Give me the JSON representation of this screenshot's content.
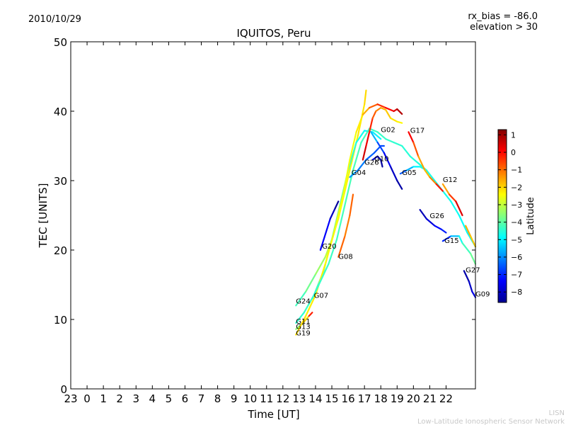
{
  "header": {
    "date": "2010/10/29",
    "rx_bias": "rx_bias = -86.0",
    "elevation": "elevation > 30"
  },
  "footer": {
    "line1": "LISN",
    "line2": "Low-Latitude Ionospheric Sensor Network"
  },
  "chart_data": {
    "type": "line",
    "title": "IQUITOS, Peru",
    "xlabel": "Time [UT]",
    "ylabel": "TEC [UNITS]",
    "xlim": [
      -1,
      23.8
    ],
    "ylim": [
      0,
      50
    ],
    "x_ticks": [
      {
        "v": -1,
        "label": "23"
      },
      {
        "v": 0,
        "label": "0"
      },
      {
        "v": 1,
        "label": "1"
      },
      {
        "v": 2,
        "label": "2"
      },
      {
        "v": 3,
        "label": "3"
      },
      {
        "v": 4,
        "label": "4"
      },
      {
        "v": 5,
        "label": "5"
      },
      {
        "v": 6,
        "label": "6"
      },
      {
        "v": 7,
        "label": "7"
      },
      {
        "v": 8,
        "label": "8"
      },
      {
        "v": 9,
        "label": "9"
      },
      {
        "v": 10,
        "label": "10"
      },
      {
        "v": 11,
        "label": "11"
      },
      {
        "v": 12,
        "label": "12"
      },
      {
        "v": 13,
        "label": "13"
      },
      {
        "v": 14,
        "label": "14"
      },
      {
        "v": 15,
        "label": "15"
      },
      {
        "v": 16,
        "label": "16"
      },
      {
        "v": 17,
        "label": "17"
      },
      {
        "v": 18,
        "label": "18"
      },
      {
        "v": 19,
        "label": "19"
      },
      {
        "v": 20,
        "label": "20"
      },
      {
        "v": 21,
        "label": "21"
      },
      {
        "v": 22,
        "label": "22"
      }
    ],
    "y_ticks": [
      0,
      10,
      20,
      30,
      40,
      50
    ],
    "colorbar": {
      "label": "Latitude",
      "min": -8.6,
      "max": 1.3,
      "ticks": [
        1,
        0,
        -1,
        -2,
        -3,
        -4,
        -5,
        -6,
        -7,
        -8
      ],
      "colors": [
        "#00008f",
        "#0000ff",
        "#0080ff",
        "#00ffff",
        "#80ff80",
        "#ffff00",
        "#ff8000",
        "#ff0000",
        "#800000"
      ]
    },
    "series": [
      {
        "name": "G24",
        "label_at": [
          12.8,
          12.3
        ],
        "points": [
          [
            12.8,
            12.0
          ],
          [
            13.4,
            14.0
          ],
          [
            14.0,
            16.5
          ],
          [
            14.6,
            19.0
          ],
          [
            15.0,
            21.5
          ],
          [
            15.4,
            24.5
          ],
          [
            15.8,
            28.5
          ],
          [
            16.2,
            32.5
          ],
          [
            16.6,
            36.5
          ],
          [
            17.0,
            41.0
          ],
          [
            17.1,
            43.0
          ]
        ],
        "lats": [
          -4.5,
          -4.0,
          -3.6,
          -3.2,
          -2.9,
          -2.6,
          -2.4,
          -2.3,
          -2.3,
          -2.1,
          -2.0
        ]
      },
      {
        "name": "G11",
        "label_at": [
          12.8,
          9.4
        ],
        "points": [
          [
            12.8,
            9.5
          ],
          [
            13.3,
            11.0
          ],
          [
            13.9,
            13.5
          ],
          [
            14.5,
            17.0
          ],
          [
            15.0,
            21.5
          ],
          [
            15.5,
            26.5
          ],
          [
            16.0,
            31.5
          ],
          [
            16.5,
            35.5
          ],
          [
            17.0,
            37.2
          ],
          [
            17.5,
            37.0
          ],
          [
            18.0,
            36.0
          ]
        ],
        "lats": [
          -4.5,
          -4.4,
          -4.3,
          -4.0,
          -3.5,
          -3.5,
          -4.3,
          -4.6,
          -4.9,
          -5.0,
          -5.0
        ]
      },
      {
        "name": "G13",
        "label_at": [
          12.8,
          8.6
        ],
        "points": [
          [
            12.8,
            8.6
          ],
          [
            13.2,
            9.4
          ],
          [
            13.6,
            10.5
          ],
          [
            13.8,
            11.0
          ]
        ],
        "lats": [
          -4.0,
          -3.0,
          -1.0,
          0.5
        ]
      },
      {
        "name": "G19",
        "label_at": [
          12.8,
          7.7
        ],
        "points": [
          [
            12.8,
            7.8
          ],
          [
            13.4,
            10.5
          ],
          [
            14.0,
            13.5
          ],
          [
            14.6,
            18.0
          ],
          [
            15.2,
            23.0
          ],
          [
            15.7,
            28.0
          ],
          [
            16.1,
            33.0
          ],
          [
            16.5,
            37.0
          ],
          [
            16.9,
            39.5
          ],
          [
            17.3,
            40.5
          ],
          [
            17.8,
            41.0
          ],
          [
            18.3,
            40.5
          ],
          [
            18.8,
            40.0
          ],
          [
            19.0,
            40.3
          ],
          [
            19.3,
            39.6
          ]
        ],
        "lats": [
          -2.0,
          -2.2,
          -2.3,
          -2.3,
          -2.4,
          -2.5,
          -2.6,
          -2.5,
          -2.0,
          -1.2,
          -0.5,
          -0.2,
          0.2,
          0.6,
          1.0
        ]
      },
      {
        "name": "G07",
        "label_at": [
          13.9,
          13.1
        ],
        "points": [
          [
            13.8,
            13.0
          ],
          [
            14.3,
            15.5
          ],
          [
            14.8,
            18.0
          ],
          [
            15.3,
            21.5
          ],
          [
            15.8,
            26.5
          ],
          [
            16.3,
            31.5
          ],
          [
            16.8,
            35.5
          ],
          [
            17.3,
            37.5
          ],
          [
            17.8,
            37.0
          ],
          [
            18.3,
            36.0
          ],
          [
            18.8,
            35.5
          ],
          [
            19.3,
            35.0
          ],
          [
            19.8,
            33.5
          ],
          [
            20.3,
            32.5
          ],
          [
            20.8,
            31.5
          ],
          [
            21.3,
            30.0
          ],
          [
            21.8,
            28.5
          ],
          [
            22.3,
            27.0
          ],
          [
            22.8,
            25.0
          ],
          [
            23.3,
            22.5
          ],
          [
            23.8,
            20.5
          ]
        ],
        "lats": [
          -4.4,
          -4.4,
          -4.3,
          -4.3,
          -4.2,
          -4.2,
          -4.2,
          -4.3,
          -4.3,
          -4.4,
          -4.4,
          -4.5,
          -4.5,
          -4.6,
          -4.6,
          -4.7,
          -4.7,
          -4.7,
          -4.8,
          -4.9,
          -5.0
        ]
      },
      {
        "name": "G20",
        "label_at": [
          14.4,
          20.2
        ],
        "points": [
          [
            14.3,
            20.0
          ],
          [
            14.9,
            24.5
          ],
          [
            15.2,
            26.0
          ],
          [
            15.4,
            27.0
          ]
        ],
        "lats": [
          -7.0,
          -7.8,
          -8.3,
          -8.6
        ]
      },
      {
        "name": "G08",
        "label_at": [
          15.4,
          18.7
        ],
        "points": [
          [
            15.4,
            19.0
          ],
          [
            15.8,
            22.0
          ],
          [
            16.1,
            25.0
          ],
          [
            16.3,
            28.0
          ]
        ],
        "lats": [
          -0.8,
          -1.0,
          -1.3,
          -0.5
        ]
      },
      {
        "name": "G04",
        "label_at": [
          16.2,
          30.8
        ],
        "points": [
          [
            16.1,
            30.5
          ],
          [
            16.6,
            31.5
          ],
          [
            17.1,
            33.0
          ],
          [
            17.6,
            34.0
          ],
          [
            18.0,
            35.0
          ],
          [
            18.2,
            35.0
          ]
        ],
        "lats": [
          -5.8,
          -6.0,
          -6.3,
          -6.5,
          -6.6,
          -6.7
        ]
      },
      {
        "name": "G02",
        "label_at": [
          18.0,
          37.0
        ],
        "points": [
          [
            17.4,
            37.0
          ],
          [
            17.8,
            35.5
          ],
          [
            18.2,
            34.0
          ],
          [
            18.6,
            32.0
          ],
          [
            19.0,
            30.0
          ],
          [
            19.3,
            28.8
          ]
        ],
        "lats": [
          -5.0,
          -6.2,
          -7.2,
          -7.8,
          -8.2,
          -8.5
        ]
      },
      {
        "name": "G26",
        "label_at": [
          17.0,
          32.3
        ],
        "points": [
          [
            16.9,
            33.0
          ],
          [
            17.1,
            35.0
          ],
          [
            17.3,
            37.0
          ],
          [
            17.5,
            39.0
          ],
          [
            17.7,
            40.0
          ],
          [
            18.0,
            40.5
          ],
          [
            18.3,
            40.2
          ],
          [
            18.6,
            39.0
          ],
          [
            19.0,
            38.5
          ],
          [
            19.3,
            38.3
          ]
        ],
        "lats": [
          0.6,
          0.4,
          0.0,
          -0.6,
          -1.0,
          -1.4,
          -1.8,
          -2.0,
          -2.3,
          -2.4
        ]
      },
      {
        "name": "G10",
        "label_at": [
          17.6,
          32.8
        ],
        "points": [
          [
            17.5,
            33.0
          ],
          [
            17.8,
            33.5
          ],
          [
            18.0,
            33.0
          ],
          [
            18.1,
            32.0
          ]
        ],
        "lats": [
          -7.5,
          -8.0,
          -8.3,
          -8.6
        ]
      },
      {
        "name": "G05",
        "label_at": [
          19.3,
          30.8
        ],
        "points": [
          [
            19.2,
            31.0
          ],
          [
            19.6,
            31.5
          ],
          [
            20.0,
            32.0
          ],
          [
            20.4,
            32.0
          ],
          [
            20.8,
            31.5
          ]
        ],
        "lats": [
          -7.0,
          -6.0,
          -5.2,
          -4.7,
          -4.5
        ]
      },
      {
        "name": "G17",
        "label_at": [
          19.8,
          36.9
        ],
        "points": [
          [
            19.7,
            37.0
          ],
          [
            20.0,
            35.5
          ],
          [
            20.3,
            33.5
          ],
          [
            20.7,
            31.5
          ],
          [
            21.0,
            30.5
          ],
          [
            21.4,
            29.5
          ],
          [
            21.8,
            28.5
          ]
        ],
        "lats": [
          0.5,
          -0.3,
          -1.2,
          -1.8,
          -1.6,
          -0.8,
          0.5
        ]
      },
      {
        "name": "G12",
        "label_at": [
          21.8,
          29.8
        ],
        "points": [
          [
            21.8,
            29.5
          ],
          [
            22.2,
            28.0
          ],
          [
            22.6,
            27.0
          ],
          [
            23.0,
            25.0
          ]
        ],
        "lats": [
          -2.0,
          -1.0,
          0.0,
          0.8
        ]
      },
      {
        "name": "G26",
        "label_at": [
          21.0,
          24.6
        ],
        "points": [
          [
            20.4,
            25.8
          ],
          [
            20.8,
            24.5
          ],
          [
            21.3,
            23.5
          ],
          [
            21.7,
            23.0
          ],
          [
            22.0,
            22.5
          ]
        ],
        "lats": [
          -8.3,
          -8.0,
          -7.5,
          -7.2,
          -7.0
        ]
      },
      {
        "name": "G15",
        "label_at": [
          21.9,
          21.0
        ],
        "points": [
          [
            21.8,
            21.3
          ],
          [
            22.3,
            22.0
          ],
          [
            22.8,
            22.0
          ],
          [
            23.0,
            21.0
          ],
          [
            23.5,
            19.5
          ],
          [
            23.8,
            18.0
          ]
        ],
        "lats": [
          -8.0,
          -6.0,
          -5.0,
          -4.5,
          -4.0,
          -3.7
        ]
      },
      {
        "name": "G27",
        "label_at": [
          23.2,
          16.8
        ],
        "points": [
          [
            23.1,
            17.0
          ],
          [
            23.4,
            15.5
          ],
          [
            23.6,
            14.0
          ],
          [
            23.8,
            13.2
          ]
        ],
        "lats": [
          -8.4,
          -8.2,
          -7.8,
          -7.5
        ]
      },
      {
        "name": "G09",
        "label_at": [
          23.8,
          13.3
        ],
        "points": [
          [
            23.2,
            23.5
          ],
          [
            23.5,
            22.0
          ],
          [
            23.8,
            20.5
          ]
        ],
        "lats": [
          -1.5,
          -1.7,
          -2.0
        ]
      }
    ]
  }
}
